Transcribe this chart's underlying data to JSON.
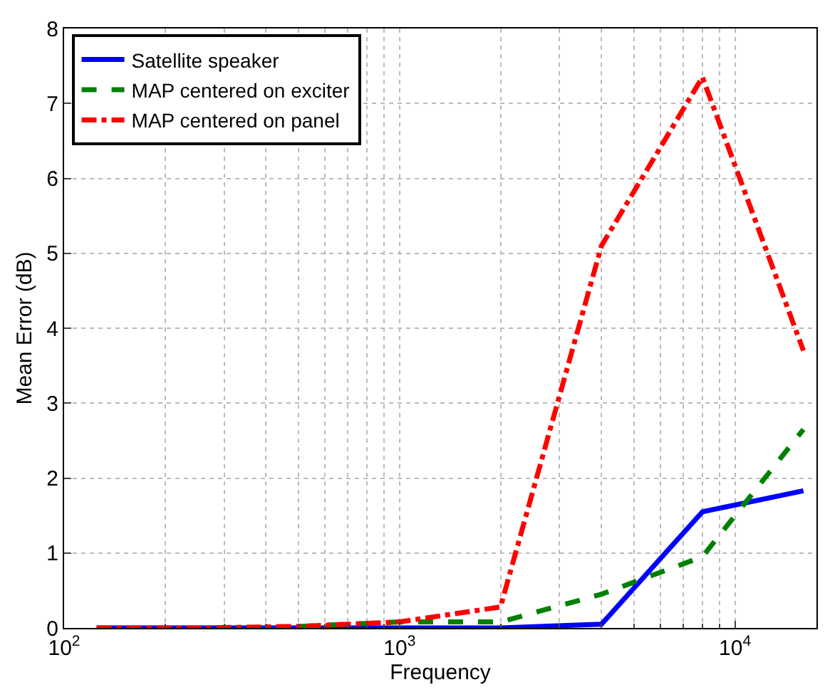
{
  "chart_data": {
    "type": "line",
    "xlabel": "Frequency",
    "ylabel": "Mean Error (dB)",
    "x": [
      125,
      250,
      500,
      1000,
      2000,
      4000,
      8000,
      16000
    ],
    "series": [
      {
        "name": "Satellite speaker",
        "color": "#0000ff",
        "line_style": "solid",
        "values": [
          0,
          0,
          0,
          0,
          0,
          0.05,
          1.55,
          1.83
        ]
      },
      {
        "name": "MAP centered on exciter",
        "color": "#008000",
        "line_style": "dashed",
        "values": [
          null,
          null,
          0.02,
          0.08,
          0.08,
          0.45,
          0.95,
          2.65
        ]
      },
      {
        "name": "MAP centered on panel",
        "color": "#ff0000",
        "line_style": "dashdot",
        "values": [
          0,
          0,
          0.02,
          0.08,
          0.28,
          5.1,
          7.35,
          3.7
        ]
      }
    ],
    "log": "x",
    "xlim": [
      100,
      17500
    ],
    "ylim": [
      0,
      8
    ],
    "xticks": [
      {
        "value": 100,
        "label": "10$^{2}$"
      },
      {
        "value": 1000,
        "label": "10$^{3}$"
      },
      {
        "value": 10000,
        "label": "10$^{4}$"
      }
    ],
    "yticks": [
      0,
      1,
      2,
      3,
      4,
      5,
      6,
      7,
      8
    ],
    "grid": true,
    "legend": "top left"
  }
}
